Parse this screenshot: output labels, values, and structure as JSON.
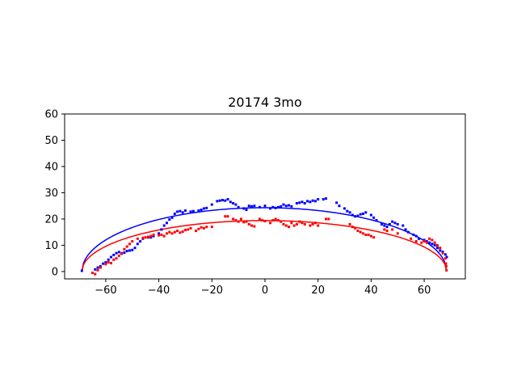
{
  "chart_data": {
    "type": "scatter",
    "title": "20174 3mo",
    "xlabel": "",
    "ylabel": "",
    "xlim": [
      -75.5,
      75.5
    ],
    "ylim": [
      -2.8,
      60
    ],
    "xticks": [
      -60,
      -40,
      -20,
      0,
      20,
      40,
      60
    ],
    "yticks": [
      0,
      10,
      20,
      30,
      40,
      50,
      60
    ],
    "grid": false,
    "fit_curves": [
      {
        "color": "#0000ff",
        "x_min": -69,
        "x_max": 68.5,
        "peak_x": 0,
        "peak_y": 24.3,
        "shape": "elliptical-arc"
      },
      {
        "color": "#ff0000",
        "x_min": -69,
        "x_max": 68.5,
        "peak_x": 0,
        "peak_y": 19.4,
        "shape": "elliptical-arc"
      }
    ],
    "series": [
      {
        "color": "#0000ff",
        "points": [
          [
            -69,
            0.3
          ],
          [
            -64,
            0.8
          ],
          [
            -63,
            1.5
          ],
          [
            -62,
            2.0
          ],
          [
            -61,
            3.0
          ],
          [
            -60,
            3.5
          ],
          [
            -59,
            4.5
          ],
          [
            -58,
            5.5
          ],
          [
            -57,
            6.3
          ],
          [
            -56,
            7.0
          ],
          [
            -55,
            7.4
          ],
          [
            -54,
            6.8
          ],
          [
            -53,
            7.2
          ],
          [
            -52,
            7.8
          ],
          [
            -51,
            8.0
          ],
          [
            -50,
            8.2
          ],
          [
            -49,
            9.0
          ],
          [
            -48,
            10.5
          ],
          [
            -47,
            11.5
          ],
          [
            -46,
            12.5
          ],
          [
            -44,
            13.0
          ],
          [
            -43,
            13.0
          ],
          [
            -42,
            13.5
          ],
          [
            -40,
            14.5
          ],
          [
            -39,
            16.0
          ],
          [
            -38,
            17.5
          ],
          [
            -37,
            18.5
          ],
          [
            -36,
            19.8
          ],
          [
            -35,
            20.5
          ],
          [
            -34,
            22.0
          ],
          [
            -33,
            22.8
          ],
          [
            -32,
            23.0
          ],
          [
            -31,
            22.5
          ],
          [
            -30,
            23.2
          ],
          [
            -28,
            22.8
          ],
          [
            -27,
            23.0
          ],
          [
            -25,
            23.2
          ],
          [
            -24,
            23.5
          ],
          [
            -23,
            24.0
          ],
          [
            -22,
            24.2
          ],
          [
            -20,
            25.5
          ],
          [
            -18,
            26.8
          ],
          [
            -17,
            27.0
          ],
          [
            -16,
            27.2
          ],
          [
            -15,
            27.0
          ],
          [
            -14,
            27.5
          ],
          [
            -13,
            26.5
          ],
          [
            -12,
            26.0
          ],
          [
            -11,
            25.5
          ],
          [
            -10,
            24.5
          ],
          [
            -8,
            24.0
          ],
          [
            -7,
            23.5
          ],
          [
            -6,
            25.0
          ],
          [
            -5,
            24.8
          ],
          [
            -4,
            25.0
          ],
          [
            -2,
            24.5
          ],
          [
            0,
            25.0
          ],
          [
            2,
            24.0
          ],
          [
            3,
            24.5
          ],
          [
            4,
            24.2
          ],
          [
            5,
            24.5
          ],
          [
            6,
            24.8
          ],
          [
            7,
            25.5
          ],
          [
            8,
            25.0
          ],
          [
            9,
            25.2
          ],
          [
            10,
            24.8
          ],
          [
            12,
            26.0
          ],
          [
            13,
            26.2
          ],
          [
            14,
            26.5
          ],
          [
            15,
            26.0
          ],
          [
            16,
            26.8
          ],
          [
            17,
            26.5
          ],
          [
            18,
            27.0
          ],
          [
            19,
            26.8
          ],
          [
            20,
            27.5
          ],
          [
            22,
            27.5
          ],
          [
            23,
            27.8
          ],
          [
            27,
            26.2
          ],
          [
            28,
            25.0
          ],
          [
            30,
            24.0
          ],
          [
            31,
            23.0
          ],
          [
            32,
            22.5
          ],
          [
            33,
            21.5
          ],
          [
            34,
            21.0
          ],
          [
            35,
            21.2
          ],
          [
            36,
            21.8
          ],
          [
            37,
            22.0
          ],
          [
            38,
            22.5
          ],
          [
            40,
            21.5
          ],
          [
            41,
            20.5
          ],
          [
            42,
            19.5
          ],
          [
            44,
            18.0
          ],
          [
            45,
            17.5
          ],
          [
            46,
            17.0
          ],
          [
            47,
            18.0
          ],
          [
            48,
            19.0
          ],
          [
            49,
            18.5
          ],
          [
            50,
            18.0
          ],
          [
            52,
            17.5
          ],
          [
            53,
            16.0
          ],
          [
            54,
            15.0
          ],
          [
            56,
            14.0
          ],
          [
            57,
            13.5
          ],
          [
            58,
            12.5
          ],
          [
            60,
            12.0
          ],
          [
            61,
            11.5
          ],
          [
            62,
            11.0
          ],
          [
            63,
            10.5
          ],
          [
            64,
            10.0
          ],
          [
            65,
            9.0
          ],
          [
            66,
            8.0
          ],
          [
            67,
            7.5
          ],
          [
            68,
            6.5
          ],
          [
            68.5,
            5.5
          ]
        ]
      },
      {
        "color": "#ff0000",
        "points": [
          [
            -65,
            -0.5
          ],
          [
            -64,
            -1.0
          ],
          [
            -63,
            0.5
          ],
          [
            -62,
            1.5
          ],
          [
            -60,
            2.8
          ],
          [
            -59,
            3.5
          ],
          [
            -58,
            3.2
          ],
          [
            -57,
            4.5
          ],
          [
            -56,
            5.0
          ],
          [
            -55,
            6.0
          ],
          [
            -54,
            7.0
          ],
          [
            -53,
            8.5
          ],
          [
            -52,
            9.5
          ],
          [
            -51,
            10.5
          ],
          [
            -50,
            11.5
          ],
          [
            -48,
            12.5
          ],
          [
            -46,
            12.8
          ],
          [
            -45,
            13.0
          ],
          [
            -44,
            13.2
          ],
          [
            -43,
            13.5
          ],
          [
            -42,
            14.0
          ],
          [
            -40,
            13.8
          ],
          [
            -39,
            14.0
          ],
          [
            -38,
            13.5
          ],
          [
            -37,
            14.5
          ],
          [
            -36,
            15.0
          ],
          [
            -35,
            14.5
          ],
          [
            -34,
            15.0
          ],
          [
            -33,
            15.5
          ],
          [
            -32,
            14.8
          ],
          [
            -31,
            15.2
          ],
          [
            -30,
            15.8
          ],
          [
            -29,
            16.0
          ],
          [
            -28,
            16.5
          ],
          [
            -26,
            15.5
          ],
          [
            -25,
            16.2
          ],
          [
            -24,
            16.8
          ],
          [
            -23,
            16.5
          ],
          [
            -22,
            17.0
          ],
          [
            -20,
            17.0
          ],
          [
            -15,
            21.0
          ],
          [
            -14,
            21.0
          ],
          [
            -12,
            20.0
          ],
          [
            -11,
            19.5
          ],
          [
            -10,
            19.0
          ],
          [
            -9,
            20.0
          ],
          [
            -8,
            18.8
          ],
          [
            -7,
            19.0
          ],
          [
            -6,
            18.0
          ],
          [
            -5,
            17.5
          ],
          [
            -4,
            17.2
          ],
          [
            -2,
            20.0
          ],
          [
            -1,
            19.5
          ],
          [
            0,
            19.2
          ],
          [
            2,
            18.5
          ],
          [
            3,
            19.5
          ],
          [
            4,
            20.0
          ],
          [
            5,
            19.5
          ],
          [
            6,
            19.0
          ],
          [
            7,
            18.0
          ],
          [
            8,
            17.5
          ],
          [
            9,
            17.0
          ],
          [
            10,
            18.5
          ],
          [
            11,
            17.5
          ],
          [
            12,
            18.0
          ],
          [
            13,
            19.0
          ],
          [
            14,
            18.5
          ],
          [
            15,
            18.0
          ],
          [
            17,
            17.5
          ],
          [
            18,
            18.0
          ],
          [
            19,
            18.5
          ],
          [
            20,
            17.5
          ],
          [
            23,
            20.0
          ],
          [
            24,
            20.0
          ],
          [
            32,
            18.0
          ],
          [
            33,
            17.0
          ],
          [
            34,
            16.5
          ],
          [
            35,
            15.5
          ],
          [
            36,
            15.0
          ],
          [
            37,
            14.5
          ],
          [
            38,
            14.0
          ],
          [
            39,
            14.0
          ],
          [
            40,
            13.5
          ],
          [
            41,
            13.0
          ],
          [
            45,
            16.0
          ],
          [
            46,
            15.5
          ],
          [
            48,
            16.0
          ],
          [
            50,
            14.5
          ],
          [
            55,
            12.5
          ],
          [
            57,
            11.5
          ],
          [
            59,
            11.0
          ],
          [
            60,
            11.5
          ],
          [
            61,
            11.0
          ],
          [
            62,
            12.5
          ],
          [
            63,
            12.0
          ],
          [
            64,
            11.0
          ],
          [
            65,
            10.0
          ],
          [
            66,
            9.0
          ],
          [
            67,
            7.0
          ],
          [
            68,
            5.0
          ],
          [
            68.2,
            3.0
          ],
          [
            68.3,
            2.0
          ],
          [
            68.4,
            0.5
          ]
        ]
      }
    ]
  }
}
